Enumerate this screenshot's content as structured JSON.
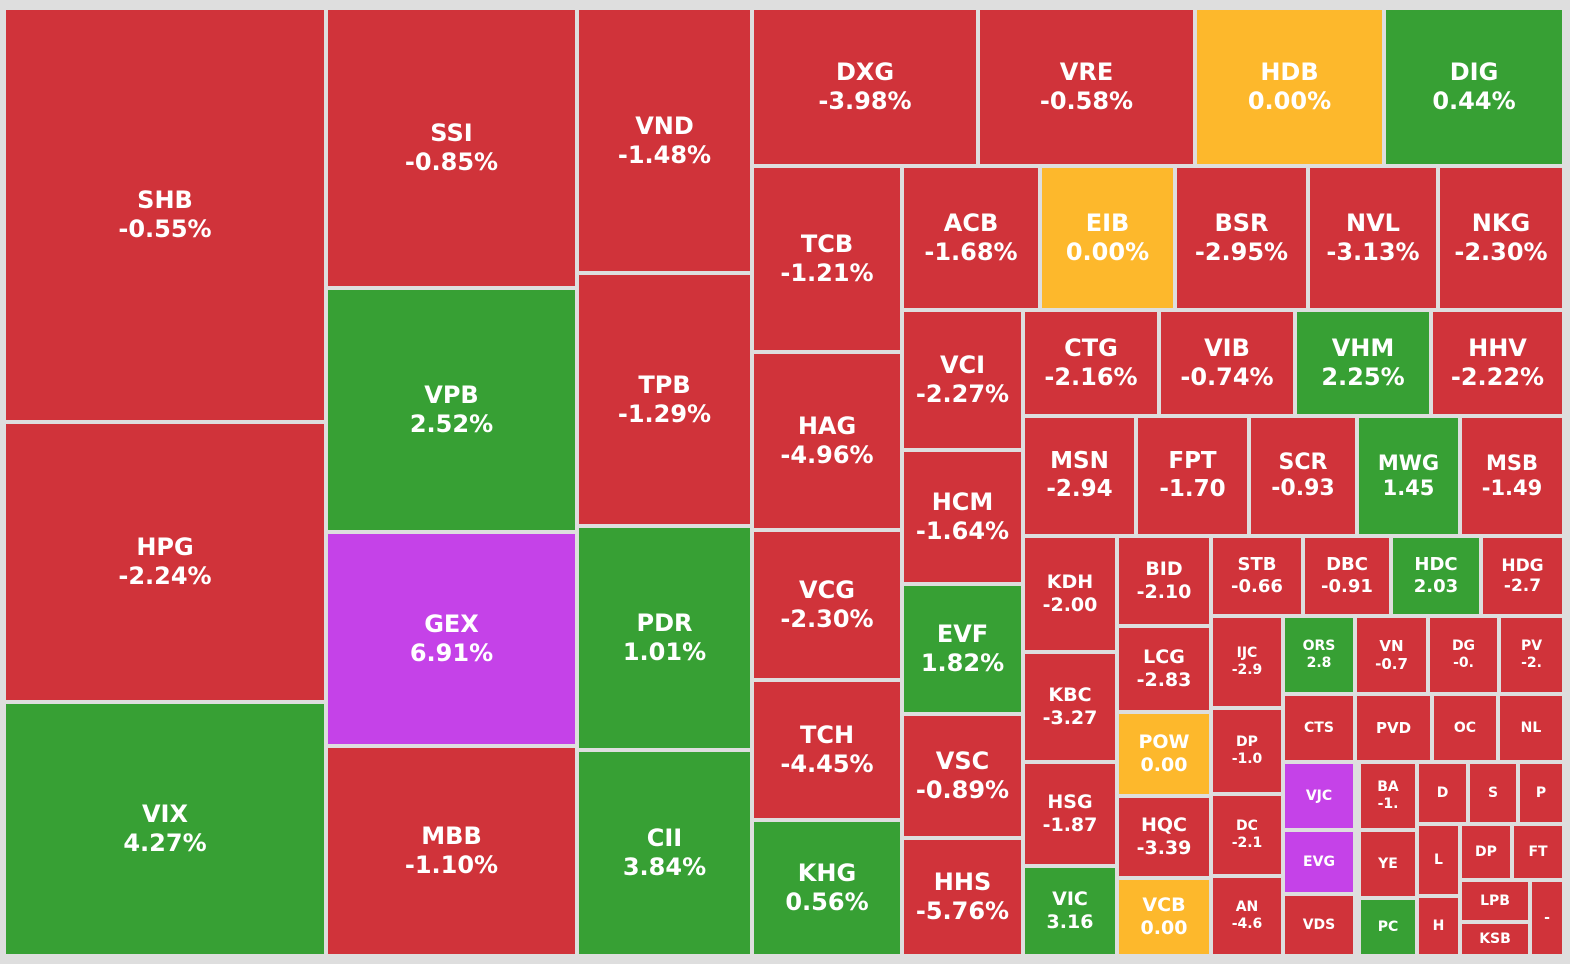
{
  "colors": {
    "down": "#d0333a",
    "up": "#37a034",
    "flat": "#fdb82c",
    "ceiling": "#c542e8",
    "gap": "#dedede",
    "text": "#ffffff"
  },
  "chart_data": {
    "type": "treemap",
    "title": "",
    "items": [
      {
        "symbol": "SHB",
        "change": "-0.55%",
        "status": "down"
      },
      {
        "symbol": "HPG",
        "change": "-2.24%",
        "status": "down"
      },
      {
        "symbol": "VIX",
        "change": "4.27%",
        "status": "up"
      },
      {
        "symbol": "SSI",
        "change": "-0.85%",
        "status": "down"
      },
      {
        "symbol": "VPB",
        "change": "2.52%",
        "status": "up"
      },
      {
        "symbol": "GEX",
        "change": "6.91%",
        "status": "ceiling"
      },
      {
        "symbol": "MBB",
        "change": "-1.10%",
        "status": "down"
      },
      {
        "symbol": "VND",
        "change": "-1.48%",
        "status": "down"
      },
      {
        "symbol": "TPB",
        "change": "-1.29%",
        "status": "down"
      },
      {
        "symbol": "PDR",
        "change": "1.01%",
        "status": "up"
      },
      {
        "symbol": "CII",
        "change": "3.84%",
        "status": "up"
      },
      {
        "symbol": "DXG",
        "change": "-3.98%",
        "status": "down"
      },
      {
        "symbol": "VRE",
        "change": "-0.58%",
        "status": "down"
      },
      {
        "symbol": "HDB",
        "change": "0.00%",
        "status": "flat"
      },
      {
        "symbol": "DIG",
        "change": "0.44%",
        "status": "up"
      },
      {
        "symbol": "TCB",
        "change": "-1.21%",
        "status": "down"
      },
      {
        "symbol": "HAG",
        "change": "-4.96%",
        "status": "down"
      },
      {
        "symbol": "VCG",
        "change": "-2.30%",
        "status": "down"
      },
      {
        "symbol": "TCH",
        "change": "-4.45%",
        "status": "down"
      },
      {
        "symbol": "KHG",
        "change": "0.56%",
        "status": "up"
      },
      {
        "symbol": "ACB",
        "change": "-1.68%",
        "status": "down"
      },
      {
        "symbol": "EIB",
        "change": "0.00%",
        "status": "flat"
      },
      {
        "symbol": "BSR",
        "change": "-2.95%",
        "status": "down"
      },
      {
        "symbol": "NVL",
        "change": "-3.13%",
        "status": "down"
      },
      {
        "symbol": "NKG",
        "change": "-2.30%",
        "status": "down"
      },
      {
        "symbol": "VCI",
        "change": "-2.27%",
        "status": "down"
      },
      {
        "symbol": "HCM",
        "change": "-1.64%",
        "status": "down"
      },
      {
        "symbol": "EVF",
        "change": "1.82%",
        "status": "up"
      },
      {
        "symbol": "VSC",
        "change": "-0.89%",
        "status": "down"
      },
      {
        "symbol": "HHS",
        "change": "-5.76%",
        "status": "down"
      },
      {
        "symbol": "CTG",
        "change": "-2.16%",
        "status": "down"
      },
      {
        "symbol": "VIB",
        "change": "-0.74%",
        "status": "down"
      },
      {
        "symbol": "VHM",
        "change": "2.25%",
        "status": "up"
      },
      {
        "symbol": "HHV",
        "change": "-2.22%",
        "status": "down"
      },
      {
        "symbol": "MSN",
        "change": "-2.94",
        "status": "down"
      },
      {
        "symbol": "FPT",
        "change": "-1.70",
        "status": "down"
      },
      {
        "symbol": "SCR",
        "change": "-0.93",
        "status": "down"
      },
      {
        "symbol": "MWG",
        "change": "1.45",
        "status": "up"
      },
      {
        "symbol": "MSB",
        "change": "-1.49",
        "status": "down"
      },
      {
        "symbol": "KDH",
        "change": "-2.00",
        "status": "down"
      },
      {
        "symbol": "KBC",
        "change": "-3.27",
        "status": "down"
      },
      {
        "symbol": "HSG",
        "change": "-1.87",
        "status": "down"
      },
      {
        "symbol": "VIC",
        "change": "3.16",
        "status": "up"
      },
      {
        "symbol": "BID",
        "change": "-2.10",
        "status": "down"
      },
      {
        "symbol": "LCG",
        "change": "-2.83",
        "status": "down"
      },
      {
        "symbol": "POW",
        "change": "0.00",
        "status": "flat"
      },
      {
        "symbol": "HQC",
        "change": "-3.39",
        "status": "down"
      },
      {
        "symbol": "VCB",
        "change": "0.00",
        "status": "flat"
      },
      {
        "symbol": "STB",
        "change": "-0.66",
        "status": "down"
      },
      {
        "symbol": "DBC",
        "change": "-0.91",
        "status": "down"
      },
      {
        "symbol": "HDC",
        "change": "2.03",
        "status": "up"
      },
      {
        "symbol": "HDG",
        "change": "-2.7",
        "status": "down"
      },
      {
        "symbol": "IJC",
        "change": "-2.9",
        "status": "down"
      },
      {
        "symbol": "DP",
        "change": "-1.0",
        "status": "down"
      },
      {
        "symbol": "DC",
        "change": "-2.1",
        "status": "down"
      },
      {
        "symbol": "AN",
        "change": "-4.6",
        "status": "down"
      },
      {
        "symbol": "ORS",
        "change": "2.8",
        "status": "up"
      },
      {
        "symbol": "VN",
        "change": "-0.7",
        "status": "down"
      },
      {
        "symbol": "DG",
        "change": "-0.",
        "status": "down"
      },
      {
        "symbol": "PV",
        "change": "-2.",
        "status": "down"
      },
      {
        "symbol": "CTS",
        "change": "",
        "status": "down"
      },
      {
        "symbol": "PVD",
        "change": "",
        "status": "down"
      },
      {
        "symbol": "OC",
        "change": "",
        "status": "down"
      },
      {
        "symbol": "NL",
        "change": "",
        "status": "down"
      },
      {
        "symbol": "VJC",
        "change": "",
        "status": "ceiling"
      },
      {
        "symbol": "EVG",
        "change": "",
        "status": "ceiling"
      },
      {
        "symbol": "VDS",
        "change": "",
        "status": "down"
      },
      {
        "symbol": "BA",
        "change": "-1.",
        "status": "down"
      },
      {
        "symbol": "YE",
        "change": "",
        "status": "down"
      },
      {
        "symbol": "PC",
        "change": "",
        "status": "up"
      },
      {
        "symbol": "D",
        "change": "",
        "status": "down"
      },
      {
        "symbol": "S",
        "change": "",
        "status": "down"
      },
      {
        "symbol": "P",
        "change": "",
        "status": "down"
      },
      {
        "symbol": "L",
        "change": "",
        "status": "down"
      },
      {
        "symbol": "H",
        "change": "",
        "status": "down"
      },
      {
        "symbol": "DP",
        "change": "",
        "status": "down"
      },
      {
        "symbol": "FT",
        "change": "",
        "status": "down"
      },
      {
        "symbol": "LPB",
        "change": "",
        "status": "down"
      },
      {
        "symbol": "KSB",
        "change": "",
        "status": "down"
      },
      {
        "symbol": "-",
        "change": "",
        "status": "down"
      }
    ]
  }
}
